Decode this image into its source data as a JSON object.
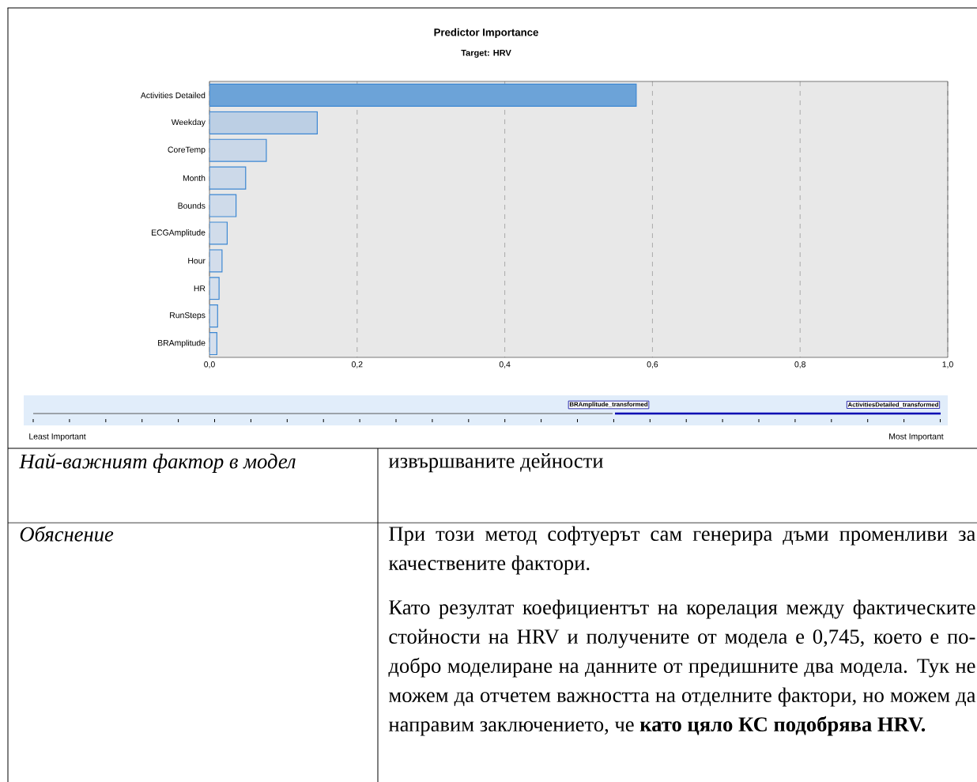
{
  "chart_data": [
    {
      "type": "bar",
      "orientation": "horizontal",
      "title": "Predictor Importance",
      "subtitle": "Target: HRV",
      "categories": [
        "Activities Detailed",
        "Weekday",
        "CoreTemp",
        "Month",
        "Bounds",
        "ECGAmplitude",
        "Hour",
        "HR",
        "RunSteps",
        "BRAmplitude"
      ],
      "values": [
        0.578,
        0.146,
        0.077,
        0.049,
        0.036,
        0.024,
        0.017,
        0.013,
        0.011,
        0.01
      ],
      "colors": [
        "#6ca3d8",
        "#bccfe4",
        "#c9d7e8",
        "#ccd9e9",
        "#cfdbea",
        "#d1dcea",
        "#d3ddeb",
        "#d4deeb",
        "#d5dfeb",
        "#d6dfec"
      ],
      "xlim": [
        0,
        1
      ],
      "xticks": [
        {
          "value": 0,
          "label": "0,0"
        },
        {
          "value": 0.2,
          "label": "0,2"
        },
        {
          "value": 0.4,
          "label": "0,4"
        },
        {
          "value": 0.6,
          "label": "0,6"
        },
        {
          "value": 0.8,
          "label": "0,8"
        },
        {
          "value": 1,
          "label": "1,0"
        }
      ],
      "grid": "x",
      "annotations": [
        "BRAmplitude_transformed",
        "ActivitiesDetailed_transformed",
        "Least Important",
        "Most Important"
      ]
    },
    {
      "type": "other",
      "annotations": [
        "Най-важният фактор в модел",
        "извършваните дейности",
        "Обяснение",
        "При този метод софтуерът сам генерира дъми променливи за качествените фактори.",
        "Като резултат коефициентът на корелация между фактическите стойности на HRV и получените от модела е 0,745, което е по-добро моделиране на данните от предишните два модела. Тук не можем да отчетем важността на отделните фактори, но можем да направим заключението, че **като цяло КС подобрява HRV.**"
      ]
    }
  ]
}
